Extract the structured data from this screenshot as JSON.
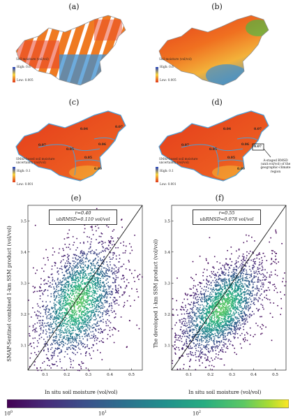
{
  "panels": {
    "a": {
      "label": "(a)",
      "legend_title": "Soil moisture (vol/vol)",
      "legend_high": "High: 0.6",
      "legend_low": "Low: 0.005"
    },
    "b": {
      "label": "(b)",
      "legend_title": "Soil moisture (vol/vol)",
      "legend_high": "High: 0.6",
      "legend_low": "Low: 0.005"
    },
    "c": {
      "label": "(c)",
      "legend_title": "SMAP-based soil moisture uncertainty (vol/vol)",
      "legend_high": "High: 0.1",
      "legend_low": "Low: 0.001",
      "region_values": [
        "0.07",
        "0.04",
        "0.07",
        "0.05",
        "0.06",
        "0.05",
        "0.09"
      ]
    },
    "d": {
      "label": "(d)",
      "legend_title": "SMAP-based soil moisture uncertainty (vol/vol)",
      "legend_high": "High: 0.1",
      "legend_low": "Low: 0.001",
      "region_values": [
        "0.07",
        "0.04",
        "0.07",
        "0.05",
        "0.06",
        "0.05",
        "0.09",
        "0.07"
      ],
      "annotation": "A-staged RMSD (unit:vol/vol) of the geographic-climate region"
    }
  },
  "colors": {
    "map_red": "#e03a1c",
    "map_orange": "#f08a24",
    "map_yellow": "#f7d43c",
    "map_blue": "#2a7fc9",
    "region_outline": "#4a9fd8",
    "border": "#8a8a8a"
  },
  "chart_data": [
    {
      "type": "scatter",
      "panel_label": "(e)",
      "stats": [
        "r=0.40",
        "ubRMSD=0.110 vol/vol"
      ],
      "xlabel": "In situ soil moisture (vol/vol)",
      "ylabel": "SMAP-Sentinel combined 1-km SSM product (vol/vol)",
      "xlim": [
        0.02,
        0.55
      ],
      "ylim": [
        0.02,
        0.55
      ],
      "xticks": [
        "0.1",
        "0.2",
        "0.3",
        "0.4",
        "0.5"
      ],
      "yticks": [
        "0.1",
        "0.2",
        "0.3",
        "0.4",
        "0.5"
      ],
      "one_to_one_line": true,
      "density_center": [
        0.25,
        0.24
      ],
      "density_spread": [
        0.1,
        0.1
      ],
      "correlation": 0.4
    },
    {
      "type": "scatter",
      "panel_label": "(f)",
      "stats": [
        "r=0.55",
        "ubRMSD=0.078 vol/vol"
      ],
      "xlabel": "In situ soil moisture (vol/vol)",
      "ylabel": "The developed 1-km SSM product (vol/vol)",
      "xlim": [
        0.02,
        0.55
      ],
      "ylim": [
        0.02,
        0.55
      ],
      "xticks": [
        "0.1",
        "0.2",
        "0.3",
        "0.4",
        "0.5"
      ],
      "yticks": [
        "0.1",
        "0.2",
        "0.3",
        "0.4",
        "0.5"
      ],
      "one_to_one_line": true,
      "density_center": [
        0.25,
        0.22
      ],
      "density_spread": [
        0.1,
        0.08
      ],
      "correlation": 0.55
    }
  ],
  "colorbar": {
    "type": "log",
    "range": [
      1,
      1000
    ],
    "labels": [
      "10^0",
      "10^1",
      "10^2"
    ],
    "colormap": "viridis"
  }
}
